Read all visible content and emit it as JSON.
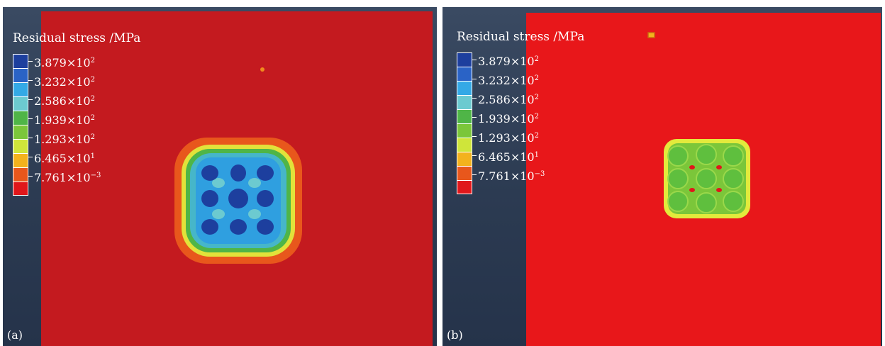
{
  "legend": {
    "title": "Residual stress /MPa",
    "ticks": [
      {
        "mantissa": "3.879",
        "times": "×",
        "base": "10",
        "exp": "2"
      },
      {
        "mantissa": "3.232",
        "times": "×",
        "base": "10",
        "exp": "2"
      },
      {
        "mantissa": "2.586",
        "times": "×",
        "base": "10",
        "exp": "2"
      },
      {
        "mantissa": "1.939",
        "times": "×",
        "base": "10",
        "exp": "2"
      },
      {
        "mantissa": "1.293",
        "times": "×",
        "base": "10",
        "exp": "2"
      },
      {
        "mantissa": "6.465",
        "times": "×",
        "base": "10",
        "exp": "1"
      },
      {
        "mantissa": "7.761",
        "times": "×",
        "base": "10",
        "exp": "−3"
      }
    ],
    "swatches": [
      "#1d3f9e",
      "#2a63c6",
      "#34a9e6",
      "#6ccad0",
      "#4fb547",
      "#7bc63a",
      "#cfe53a",
      "#f3b21d",
      "#e8571c",
      "#e0171b"
    ]
  },
  "panels": [
    {
      "label": "(a)",
      "field_color": "#c41a1f"
    },
    {
      "label": "(b)",
      "field_color": "#e8171a"
    }
  ]
}
